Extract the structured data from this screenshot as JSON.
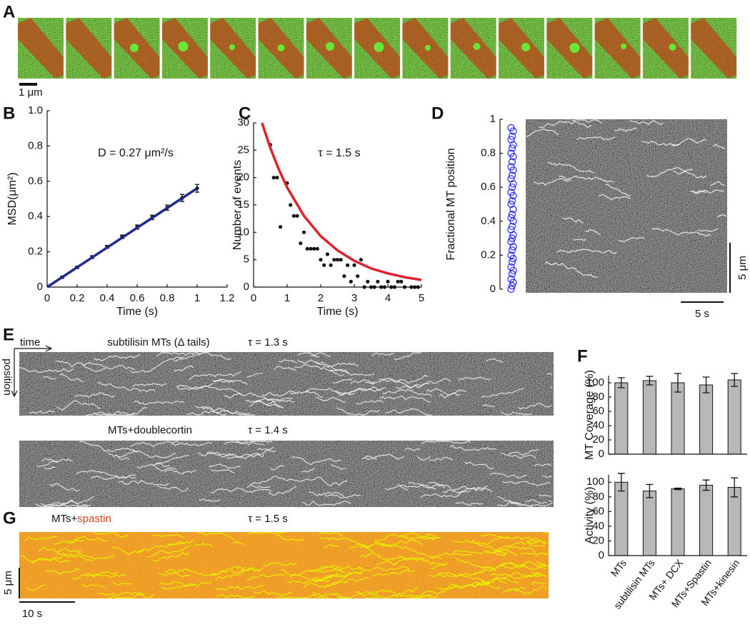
{
  "panel_labels": [
    "A",
    "B",
    "C",
    "D",
    "E",
    "F",
    "G"
  ],
  "panel_a": {
    "scale_label": "1 μm"
  },
  "panel_e": {
    "time_label": "time",
    "position_label": "position",
    "rows": [
      {
        "label": "subtilisin MTs (Δ tails)",
        "tau": "τ = 1.3 s"
      },
      {
        "label": "MTs+doublecortin",
        "tau": "τ = 1.4 s"
      }
    ]
  },
  "panel_g": {
    "label_prefix": "MTs+",
    "label_highlight": "spastin",
    "tau": "τ = 1.5 s",
    "scale_y_label": "5 μm",
    "scale_x_label": "10 s"
  },
  "chart_data": [
    {
      "type": "scatter",
      "x_label": "Time (s)",
      "y_label": "MSD(μm²)",
      "annotation": "D = 0.27 μm²/s",
      "xlim": [
        0,
        1.2
      ],
      "xticks": [
        0,
        0.2,
        0.4,
        0.6,
        0.8,
        1,
        1.2
      ],
      "ylim": [
        0,
        1
      ],
      "yticks": [
        0,
        0.2,
        0.4,
        0.6,
        0.8,
        {
          "value": 1,
          "label": "1.0"
        }
      ],
      "series": [
        {
          "mode": "markers",
          "color": "#111111",
          "x": [
            0.1,
            0.2,
            0.3,
            0.4,
            0.5,
            0.6,
            0.7,
            0.8,
            0.9,
            1
          ],
          "values": [
            0.056,
            0.112,
            0.17,
            0.228,
            0.285,
            0.34,
            0.395,
            0.45,
            0.505,
            0.56
          ],
          "errors": [
            0.005,
            0.006,
            0.008,
            0.008,
            0.01,
            0.012,
            0.013,
            0.015,
            0.02,
            0.022
          ]
        },
        {
          "mode": "line",
          "color": "#1f2a8a",
          "x": [
            0,
            1
          ],
          "values": [
            0,
            0.56
          ]
        }
      ]
    },
    {
      "type": "scatter",
      "x_label": "Time (s)",
      "y_label": "Number of events",
      "annotation": "τ = 1.5 s",
      "xlim": [
        0,
        5
      ],
      "xticks": [
        0,
        1,
        2,
        3,
        4,
        5
      ],
      "ylim": [
        0,
        30
      ],
      "yticks": [
        0,
        5,
        10,
        15,
        20,
        25,
        30
      ],
      "series": [
        {
          "mode": "markers",
          "color": "#111111",
          "x": [
            0.5,
            0.6,
            0.7,
            0.8,
            1.0,
            1.1,
            1.2,
            1.3,
            1.4,
            1.5,
            1.6,
            1.7,
            1.8,
            1.9,
            2.0,
            2.1,
            2.2,
            2.3,
            2.4,
            2.5,
            2.6,
            2.7,
            2.8,
            2.9,
            3.0,
            3.1,
            3.2,
            3.3,
            3.4,
            3.5,
            3.6,
            3.7,
            3.8,
            3.9,
            4.0,
            4.1,
            4.2,
            4.3,
            4.4,
            4.5,
            4.7,
            4.8,
            4.9
          ],
          "values": [
            26,
            20,
            20,
            11,
            19,
            15,
            13,
            13,
            8,
            10,
            7,
            7,
            7,
            7,
            5,
            4,
            6,
            4,
            5,
            5,
            5,
            2,
            4,
            1,
            4,
            2,
            5,
            0,
            1,
            0,
            0,
            1,
            0,
            0,
            1,
            0,
            0,
            1,
            1,
            0,
            0,
            0,
            0
          ]
        },
        {
          "mode": "line",
          "color": "#e0202a",
          "x": [
            0.25,
            0.5,
            0.75,
            1,
            1.5,
            2,
            2.5,
            3,
            3.5,
            4,
            4.5,
            5
          ],
          "values": [
            30,
            25.4,
            21.5,
            18.2,
            13.0,
            9.3,
            6.7,
            4.8,
            3.4,
            2.5,
            1.8,
            1.3
          ]
        }
      ]
    },
    {
      "type": "strip",
      "y_label": "Fractional MT position",
      "color": "#2424ff",
      "ylim": [
        0,
        1
      ],
      "yticks": [
        0,
        0.2,
        0.4,
        0.6,
        0.8,
        1
      ],
      "values": [
        0.0,
        0.02,
        0.04,
        0.06,
        0.09,
        0.11,
        0.13,
        0.16,
        0.18,
        0.2,
        0.23,
        0.25,
        0.28,
        0.3,
        0.32,
        0.35,
        0.37,
        0.4,
        0.42,
        0.44,
        0.47,
        0.5,
        0.52,
        0.55,
        0.57,
        0.6,
        0.62,
        0.65,
        0.67,
        0.7,
        0.72,
        0.75,
        0.78,
        0.8,
        0.83,
        0.85,
        0.88,
        0.9,
        0.93,
        0.95
      ],
      "scale_x_label": "5 s",
      "scale_y_label": "5 μm"
    },
    {
      "type": "bar",
      "y_label": "MT Coverage (%)",
      "color": "#b8b8b8",
      "ylim": [
        0,
        110
      ],
      "yticks": [
        0,
        20,
        40,
        60,
        80,
        100
      ],
      "values": [
        100,
        103,
        100,
        97,
        104
      ],
      "errors": [
        7,
        6,
        13,
        11,
        9
      ]
    },
    {
      "type": "bar",
      "y_label": "Activity (%)",
      "color": "#b8b8b8",
      "categories": [
        "MTs",
        "subtilisin MTs",
        "MTs+ DCX",
        "MTs+Spastin",
        "MTs+kinesin"
      ],
      "ylim": [
        0,
        110
      ],
      "yticks": [
        0,
        20,
        40,
        60,
        80,
        100
      ],
      "values": [
        100,
        88,
        91,
        96,
        93
      ],
      "errors": [
        12,
        9,
        1,
        7,
        13
      ]
    }
  ]
}
